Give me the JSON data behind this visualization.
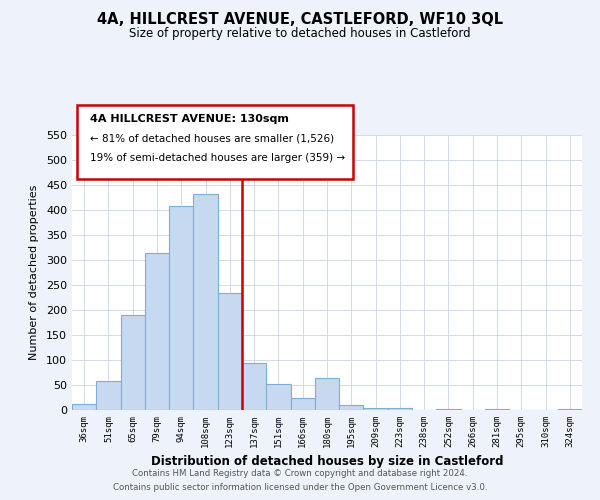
{
  "title": "4A, HILLCREST AVENUE, CASTLEFORD, WF10 3QL",
  "subtitle": "Size of property relative to detached houses in Castleford",
  "xlabel": "Distribution of detached houses by size in Castleford",
  "ylabel": "Number of detached properties",
  "bar_labels": [
    "36sqm",
    "51sqm",
    "65sqm",
    "79sqm",
    "94sqm",
    "108sqm",
    "123sqm",
    "137sqm",
    "151sqm",
    "166sqm",
    "180sqm",
    "195sqm",
    "209sqm",
    "223sqm",
    "238sqm",
    "252sqm",
    "266sqm",
    "281sqm",
    "295sqm",
    "310sqm",
    "324sqm"
  ],
  "bar_values": [
    12,
    59,
    190,
    314,
    408,
    432,
    234,
    95,
    52,
    25,
    65,
    10,
    5,
    4,
    0,
    3,
    0,
    3,
    0,
    0,
    2
  ],
  "bar_color": "#c6d9f0",
  "bar_edge_color": "#7bafd4",
  "vline_color": "#cc0000",
  "ylim": [
    0,
    550
  ],
  "yticks": [
    0,
    50,
    100,
    150,
    200,
    250,
    300,
    350,
    400,
    450,
    500,
    550
  ],
  "annotation_title": "4A HILLCREST AVENUE: 130sqm",
  "annotation_line1": "← 81% of detached houses are smaller (1,526)",
  "annotation_line2": "19% of semi-detached houses are larger (359) →",
  "footer_line1": "Contains HM Land Registry data © Crown copyright and database right 2024.",
  "footer_line2": "Contains public sector information licensed under the Open Government Licence v3.0.",
  "bg_color": "#eef2fa",
  "plot_bg_color": "#ffffff",
  "grid_color": "#c8d4e8"
}
